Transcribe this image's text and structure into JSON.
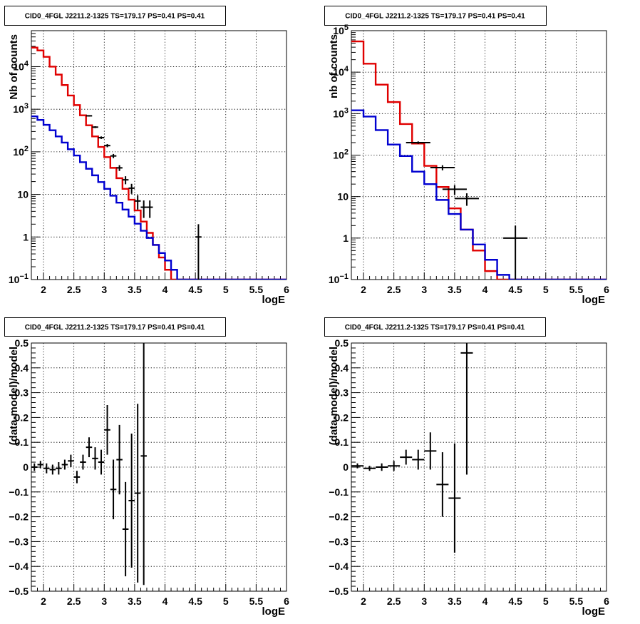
{
  "chart_data": [
    {
      "type": "line",
      "title": "CID0_4FGL J2211.2-1325 TS=179.17 PS=0.41 PS=0.41",
      "xlabel": "logE",
      "ylabel": "Nb of counts",
      "yscale": "log",
      "xlim": [
        1.8,
        6.0
      ],
      "ylim": [
        0.1,
        70000
      ],
      "xticks": [
        "2",
        "2.5",
        "3",
        "3.5",
        "4",
        "4.5",
        "5",
        "5.5",
        "6"
      ],
      "yticks": [
        "10⁻¹",
        "1",
        "10",
        "10²",
        "10³",
        "10⁴"
      ],
      "grid": true,
      "bin_edges": [
        1.8,
        1.9,
        2.0,
        2.1,
        2.2,
        2.3,
        2.4,
        2.5,
        2.6,
        2.7,
        2.8,
        2.9,
        3.0,
        3.1,
        3.2,
        3.3,
        3.4,
        3.5,
        3.6,
        3.7,
        3.8,
        3.9,
        4.0,
        4.1,
        4.2,
        4.3,
        4.4,
        4.5,
        4.6,
        4.7,
        4.8,
        4.9,
        5.0,
        5.1,
        5.2,
        5.3,
        5.4,
        5.5,
        5.6,
        5.7,
        5.8,
        5.9,
        6.0
      ],
      "series": [
        {
          "color": "#e00000",
          "style": "hist",
          "values": [
            28000,
            24000,
            17000,
            10000,
            6500,
            3700,
            2100,
            1250,
            720,
            420,
            230,
            130,
            75,
            42,
            24,
            13.5,
            7.5,
            4.2,
            2.3,
            1.25,
            0.65,
            0.33,
            0.17,
            0.1,
            0.1,
            0.1,
            0.1,
            0.1,
            0.1,
            0.1,
            0.1,
            0.1,
            0.1,
            0.1,
            0.1,
            0.1,
            0.1,
            0.1,
            0.1,
            0.1,
            0.1,
            0.1
          ]
        },
        {
          "color": "#0000d0",
          "style": "hist",
          "values": [
            680,
            560,
            430,
            320,
            230,
            165,
            115,
            82,
            57,
            40,
            28,
            19.5,
            13.5,
            9.3,
            6.4,
            4.4,
            3.0,
            2.05,
            1.4,
            0.95,
            0.65,
            0.42,
            0.28,
            0.17,
            0.1,
            0.1,
            0.1,
            0.1,
            0.1,
            0.1,
            0.1,
            0.1,
            0.1,
            0.1,
            0.1,
            0.1,
            0.1,
            0.1,
            0.1,
            0.1,
            0.1,
            0.1
          ]
        },
        {
          "color": "#000000",
          "style": "points",
          "x": [
            2.75,
            2.85,
            2.95,
            3.05,
            3.15,
            3.25,
            3.35,
            3.45,
            3.55,
            3.65,
            3.75,
            4.55
          ],
          "y": [
            700,
            380,
            215,
            140,
            80,
            42,
            22,
            14,
            7,
            5,
            5,
            1
          ],
          "yerr": [
            26,
            19,
            15,
            12,
            9,
            6.5,
            4.7,
            3.7,
            2.6,
            2.2,
            2.2,
            1
          ]
        }
      ]
    },
    {
      "type": "line",
      "title": "CID0_4FGL J2211.2-1325 TS=179.17 PS=0.41 PS=0.41",
      "xlabel": "logE",
      "ylabel": "nb of counts",
      "yscale": "log",
      "xlim": [
        1.8,
        6.0
      ],
      "ylim": [
        0.1,
        100000
      ],
      "xticks": [
        "2",
        "2.5",
        "3",
        "3.5",
        "4",
        "4.5",
        "5",
        "5.5",
        "6"
      ],
      "yticks": [
        "10⁻¹",
        "1",
        "10",
        "10²",
        "10³",
        "10⁴",
        "10⁵"
      ],
      "grid": true,
      "bin_edges": [
        1.8,
        2.0,
        2.2,
        2.4,
        2.6,
        2.8,
        3.0,
        3.2,
        3.4,
        3.6,
        3.8,
        4.0,
        4.2,
        4.4,
        4.6,
        4.8,
        5.0,
        5.2,
        5.4,
        5.6,
        5.8,
        6.0
      ],
      "series": [
        {
          "color": "#e00000",
          "style": "hist",
          "values": [
            55000,
            16000,
            5000,
            1900,
            560,
            190,
            55,
            17,
            5.2,
            1.6,
            0.5,
            0.16,
            0.1,
            0.1,
            0.1,
            0.1,
            0.1,
            0.1,
            0.1,
            0.1,
            0.1
          ]
        },
        {
          "color": "#0000d0",
          "style": "hist",
          "values": [
            1200,
            850,
            400,
            180,
            95,
            40,
            20,
            8.3,
            3.8,
            1.6,
            0.7,
            0.3,
            0.13,
            0.1,
            0.1,
            0.1,
            0.1,
            0.1,
            0.1,
            0.1,
            0.1
          ]
        },
        {
          "color": "#000000",
          "style": "points",
          "x": [
            2.9,
            3.3,
            3.5,
            3.7,
            4.5
          ],
          "y": [
            200,
            50,
            15,
            9,
            1
          ],
          "yerr": [
            14,
            7,
            3.9,
            3,
            1
          ]
        }
      ]
    },
    {
      "type": "scatter",
      "title": "CID0_4FGL J2211.2-1325 TS=179.17 PS=0.41 PS=0.41",
      "xlabel": "logE",
      "ylabel": "(data-model)/model",
      "xlim": [
        1.8,
        6.0
      ],
      "ylim": [
        -0.5,
        0.5
      ],
      "xticks": [
        "2",
        "2.5",
        "3",
        "3.5",
        "4",
        "4.5",
        "5",
        "5.5",
        "6"
      ],
      "yticks": [
        "−0.5",
        "−0.4",
        "−0.3",
        "−0.2",
        "−0.1",
        "0",
        "0.1",
        "0.2",
        "0.3",
        "0.4",
        "0.5"
      ],
      "grid": true,
      "series": [
        {
          "color": "#000000",
          "x": [
            1.85,
            1.95,
            2.05,
            2.15,
            2.25,
            2.35,
            2.45,
            2.55,
            2.65,
            2.75,
            2.85,
            2.95,
            3.05,
            3.15,
            3.25,
            3.35,
            3.45,
            3.55,
            3.65
          ],
          "y": [
            0.0,
            0.01,
            -0.005,
            -0.01,
            -0.005,
            0.01,
            0.025,
            -0.04,
            0.02,
            0.08,
            0.035,
            0.02,
            0.15,
            -0.09,
            0.03,
            -0.25,
            -0.135,
            -0.105,
            0.045
          ],
          "yerr": [
            0.015,
            0.015,
            0.02,
            0.02,
            0.025,
            0.02,
            0.025,
            0.025,
            0.03,
            0.04,
            0.045,
            0.05,
            0.1,
            0.12,
            0.14,
            0.19,
            0.27,
            0.36,
            0.52
          ]
        }
      ]
    },
    {
      "type": "scatter",
      "title": "CID0_4FGL J2211.2-1325 TS=179.17 PS=0.41 PS=0.41",
      "xlabel": "logE",
      "ylabel": "(data-model)/model",
      "xlim": [
        1.8,
        6.0
      ],
      "ylim": [
        -0.5,
        0.5
      ],
      "xticks": [
        "2",
        "2.5",
        "3",
        "3.5",
        "4",
        "4.5",
        "5",
        "5.5",
        "6"
      ],
      "yticks": [
        "−0.5",
        "−0.4",
        "−0.3",
        "−0.2",
        "−0.1",
        "0",
        "0.1",
        "0.2",
        "0.3",
        "0.4",
        "0.5"
      ],
      "grid": true,
      "series": [
        {
          "color": "#000000",
          "x": [
            1.9,
            2.1,
            2.3,
            2.5,
            2.7,
            2.9,
            3.1,
            3.3,
            3.5,
            3.7
          ],
          "y": [
            0.005,
            -0.005,
            0.0,
            0.005,
            0.04,
            0.03,
            0.065,
            -0.07,
            -0.125,
            0.46
          ],
          "yerr": [
            0.01,
            0.01,
            0.015,
            0.02,
            0.03,
            0.04,
            0.075,
            0.13,
            0.22,
            0.49
          ]
        }
      ]
    }
  ]
}
